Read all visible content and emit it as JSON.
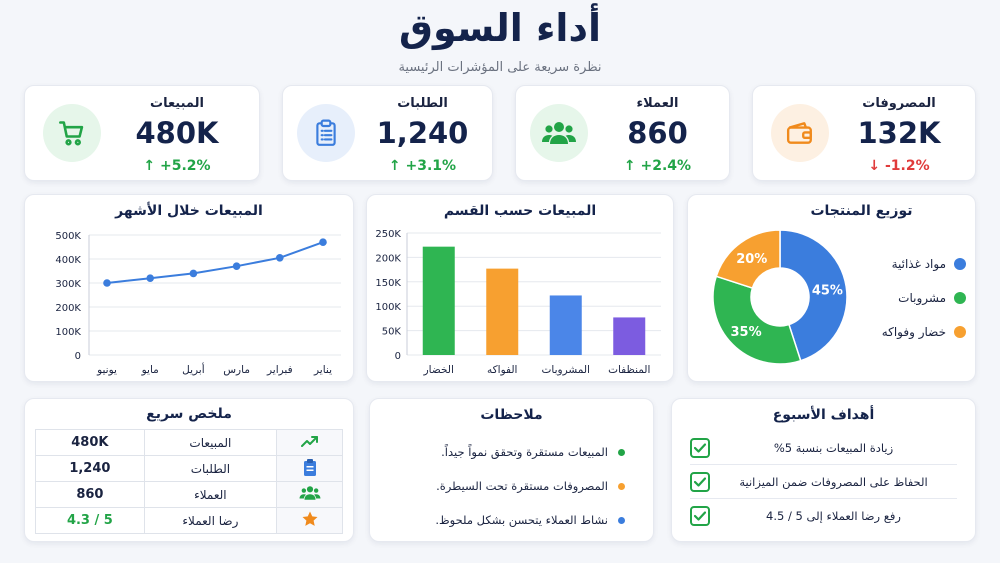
{
  "header": {
    "title": "أداء السوق",
    "subtitle": "نظرة سريعة على المؤشرات الرئيسية"
  },
  "kpis": [
    {
      "label": "المبيعات",
      "value": "480K",
      "change": "+5.2%",
      "direction": "up",
      "icon": "shopping-cart-icon",
      "color": "#22a447",
      "bg": "#e6f6ea"
    },
    {
      "label": "الطلبات",
      "value": "1,240",
      "change": "+3.1%",
      "direction": "up",
      "icon": "clipboard-icon",
      "color": "#3b7ddd",
      "bg": "#e7effb"
    },
    {
      "label": "العملاء",
      "value": "860",
      "change": "+2.4%",
      "direction": "up",
      "icon": "users-icon",
      "color": "#22a447",
      "bg": "#e6f6ea"
    },
    {
      "label": "المصروفات",
      "value": "132K",
      "change": "-1.2%",
      "direction": "down",
      "icon": "wallet-icon",
      "color": "#f08a1c",
      "bg": "#fdf0e2"
    }
  ],
  "line_chart": {
    "title": "المبيعات خلال الأشهر"
  },
  "bar_chart": {
    "title": "المبيعات حسب القسم"
  },
  "pie_chart": {
    "title": "توزيع المنتجات"
  },
  "chart_data": [
    {
      "type": "line",
      "title": "المبيعات خلال الأشهر",
      "categories": [
        "يناير",
        "فبراير",
        "مارس",
        "أبريل",
        "مايو",
        "يونيو"
      ],
      "values": [
        300000,
        320000,
        340000,
        370000,
        405000,
        470000
      ],
      "ytick_labels": [
        "0",
        "100K",
        "200K",
        "300K",
        "400K",
        "500K"
      ],
      "ylim": [
        0,
        500000
      ],
      "grid": true,
      "color": "#3b7ddd"
    },
    {
      "type": "bar",
      "title": "المبيعات حسب القسم",
      "categories": [
        "الخضار",
        "الفواكه",
        "المشروبات",
        "المنظفات"
      ],
      "values": [
        222000,
        177000,
        122000,
        77000
      ],
      "colors": [
        "#2fb552",
        "#f7a030",
        "#4b86e8",
        "#7c5ce0"
      ],
      "ytick_labels": [
        "0",
        "50K",
        "100K",
        "150K",
        "200K",
        "250K"
      ],
      "ylim": [
        0,
        250000
      ],
      "grid": true
    },
    {
      "type": "pie",
      "title": "توزيع المنتجات",
      "categories": [
        "مواد غذائية",
        "مشروبات",
        "خضار وفواكه"
      ],
      "values": [
        45,
        35,
        20
      ],
      "labels": [
        "45%",
        "35%",
        "20%"
      ],
      "colors": [
        "#3b7ddd",
        "#2fb552",
        "#f7a030"
      ],
      "legend": "right"
    }
  ],
  "summary": {
    "title": "ملخص سريع",
    "rows": [
      {
        "label": "المبيعات",
        "value": "480K",
        "icon": "trending-up-icon",
        "color": "#22a447"
      },
      {
        "label": "الطلبات",
        "value": "1,240",
        "icon": "clipboard-icon",
        "color": "#3b7ddd"
      },
      {
        "label": "العملاء",
        "value": "860",
        "icon": "users-icon",
        "color": "#22a447"
      },
      {
        "label": "رضا العملاء",
        "value": "4.3 / 5",
        "icon": "star-icon",
        "color": "#f08a1c"
      }
    ]
  },
  "notes": {
    "title": "ملاحظات",
    "items": [
      {
        "text": "المبيعات مستقرة وتحقق نمواً جيداً.",
        "color": "#22a447"
      },
      {
        "text": "المصروفات مستقرة تحت السيطرة.",
        "color": "#f7a030"
      },
      {
        "text": "نشاط العملاء يتحسن بشكل ملحوظ.",
        "color": "#3b7ddd"
      }
    ]
  },
  "goals": {
    "title": "أهداف الأسبوع",
    "items": [
      {
        "text": "زيادة المبيعات بنسبة 5%"
      },
      {
        "text": "الحفاظ على المصروفات ضمن الميزانية"
      },
      {
        "text": "رفع رضا العملاء إلى 5 / 4.5"
      }
    ]
  }
}
